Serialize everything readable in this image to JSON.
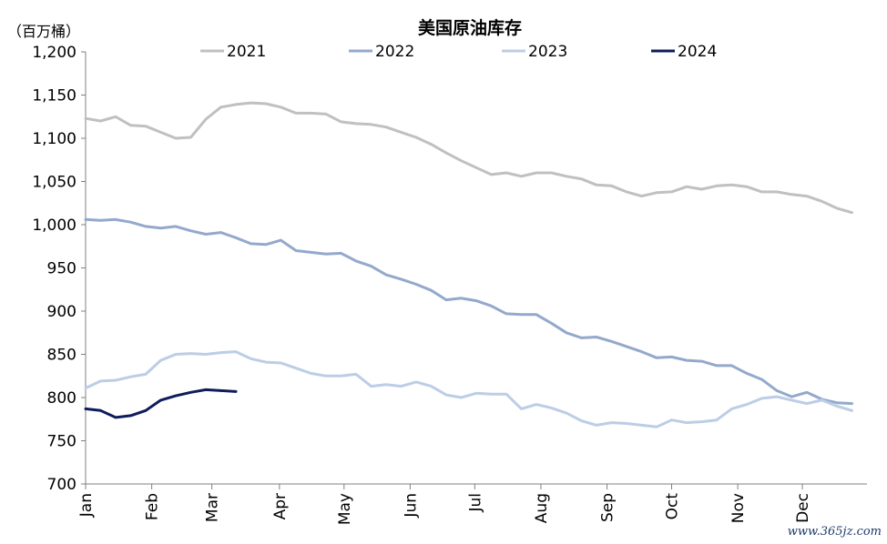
{
  "chart_data": {
    "type": "line",
    "title": "美国原油库存",
    "ylabel": "（百万桶）",
    "xlabel": "",
    "ylim": [
      700,
      1200
    ],
    "yticks": [
      700,
      750,
      800,
      850,
      900,
      950,
      1000,
      1050,
      1100,
      1150,
      1200
    ],
    "ytick_labels": [
      "700",
      "750",
      "800",
      "850",
      "900",
      "950",
      "1,000",
      "1,050",
      "1,100",
      "1,150",
      "1,200"
    ],
    "x_range": [
      0,
      52
    ],
    "months": [
      {
        "label": "Jan",
        "pos": 0
      },
      {
        "label": "Feb",
        "pos": 4.4
      },
      {
        "label": "Mar",
        "pos": 8.4
      },
      {
        "label": "Apr",
        "pos": 12.9
      },
      {
        "label": "May",
        "pos": 17.2
      },
      {
        "label": "Jun",
        "pos": 21.6
      },
      {
        "label": "Jul",
        "pos": 25.9
      },
      {
        "label": "Aug",
        "pos": 30.3
      },
      {
        "label": "Sep",
        "pos": 34.7
      },
      {
        "label": "Oct",
        "pos": 39.0
      },
      {
        "label": "Nov",
        "pos": 43.4
      },
      {
        "label": "Dec",
        "pos": 47.7
      }
    ],
    "legend_position": "top",
    "series": [
      {
        "name": "2021",
        "color": "#c0c0c0",
        "values": [
          1123,
          1120,
          1125,
          1115,
          1114,
          1107,
          1100,
          1101,
          1122,
          1136,
          1139,
          1141,
          1140,
          1136,
          1129,
          1129,
          1128,
          1119,
          1117,
          1116,
          1113,
          1107,
          1101,
          1093,
          1083,
          1074,
          1066,
          1058,
          1060,
          1056,
          1060,
          1060,
          1056,
          1053,
          1046,
          1045,
          1038,
          1033,
          1037,
          1038,
          1044,
          1041,
          1045,
          1046,
          1044,
          1038,
          1038,
          1035,
          1033,
          1027,
          1019,
          1014
        ]
      },
      {
        "name": "2022",
        "color": "#93a9cc",
        "values": [
          1006,
          1005,
          1006,
          1003,
          998,
          996,
          998,
          993,
          989,
          991,
          985,
          978,
          977,
          982,
          970,
          968,
          966,
          967,
          958,
          952,
          942,
          937,
          931,
          924,
          913,
          915,
          912,
          906,
          897,
          896,
          896,
          886,
          875,
          869,
          870,
          865,
          859,
          853,
          846,
          847,
          843,
          842,
          837,
          837,
          828,
          821,
          808,
          801,
          806,
          798,
          794,
          793
        ]
      },
      {
        "name": "2023",
        "color": "#bccde6",
        "values": [
          811,
          819,
          820,
          824,
          827,
          843,
          850,
          851,
          850,
          852,
          853,
          845,
          841,
          840,
          834,
          828,
          825,
          825,
          827,
          813,
          815,
          813,
          818,
          813,
          803,
          800,
          805,
          804,
          804,
          787,
          792,
          788,
          782,
          773,
          768,
          771,
          770,
          768,
          766,
          774,
          771,
          772,
          774,
          787,
          792,
          799,
          801,
          797,
          793,
          797,
          790,
          785
        ]
      },
      {
        "name": "2024",
        "color": "#0e1c5a",
        "values": [
          787,
          785,
          777,
          779,
          785,
          797,
          802,
          806,
          809,
          808,
          807
        ]
      }
    ]
  },
  "watermark": "www.365jz.com"
}
